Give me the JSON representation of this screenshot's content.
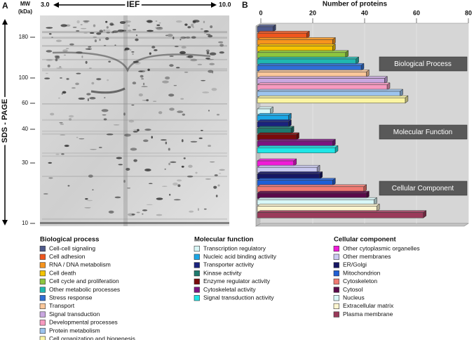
{
  "panel_a": {
    "label": "A",
    "mw_label": [
      "MW",
      "(kDa)"
    ],
    "ief_label": "IEF",
    "ief_start": "3.0",
    "ief_end": "10.0",
    "sds_label": "SDS - PAGE",
    "mw_markers": [
      180,
      100,
      60,
      40,
      30,
      10
    ]
  },
  "chart_data": {
    "type": "bar",
    "orientation": "horizontal",
    "panel_label": "B",
    "title": "Number of proteins",
    "xlim": [
      0,
      80
    ],
    "xticks": [
      0,
      20,
      40,
      60,
      80
    ],
    "grid": true,
    "groups": [
      {
        "label": "Biological Process",
        "legend_title": "Biological process",
        "categories": [
          "Cell-cell signaling",
          "Cell adhesion",
          "RNA / DNA metabolism",
          "Cell death",
          "Cell cycle  and proliferation",
          "Other metabolic processes",
          "Stress response",
          "Transport",
          "Signal transduction",
          "Developmental processes",
          "Protein metabolism",
          "Cell organization  and biogenesis"
        ],
        "values": [
          6,
          19,
          29,
          29,
          34,
          38,
          40,
          42,
          49,
          50,
          55,
          57
        ],
        "colors": [
          "#4f5a8c",
          "#f0561e",
          "#f7941d",
          "#f5c400",
          "#8dc63f",
          "#1fb8b0",
          "#2f6fd6",
          "#fbc79a",
          "#c9a7e0",
          "#f79ac0",
          "#9cc4ee",
          "#fbf5a3"
        ]
      },
      {
        "label": "Molecular Function",
        "legend_title": "Molecular function",
        "categories": [
          "Transcription regulatory",
          "Nucleic acid  binding activity",
          "Transporter activity",
          "Kinase activity",
          "Enzyme regulator activity",
          "Cytoskeletal activity",
          "Signal transduction activity"
        ],
        "values": [
          5,
          12,
          12,
          13,
          15,
          29,
          30
        ],
        "colors": [
          "#d8f7f7",
          "#1aa6e6",
          "#1a237e",
          "#1d7a6e",
          "#7a0a0a",
          "#7b1580",
          "#1ee6e6"
        ]
      },
      {
        "label": "Cellular Component",
        "legend_title": "Cellular component",
        "categories": [
          "Other cytoplasmic organelles",
          "Other membranes",
          "ER/Golgi",
          "Mitochondrion",
          "Cytoskeleton",
          "Cytosol",
          "Nucleus",
          "Extracellular matrix",
          "Plasma membrane"
        ],
        "values": [
          14,
          23,
          24,
          29,
          41,
          42,
          45,
          46,
          64
        ],
        "colors": [
          "#f01ad8",
          "#c9c9f0",
          "#161663",
          "#1f5fd6",
          "#f07a72",
          "#5a0a4a",
          "#d8f7f7",
          "#fff6d0",
          "#9a3a5a"
        ]
      }
    ]
  }
}
